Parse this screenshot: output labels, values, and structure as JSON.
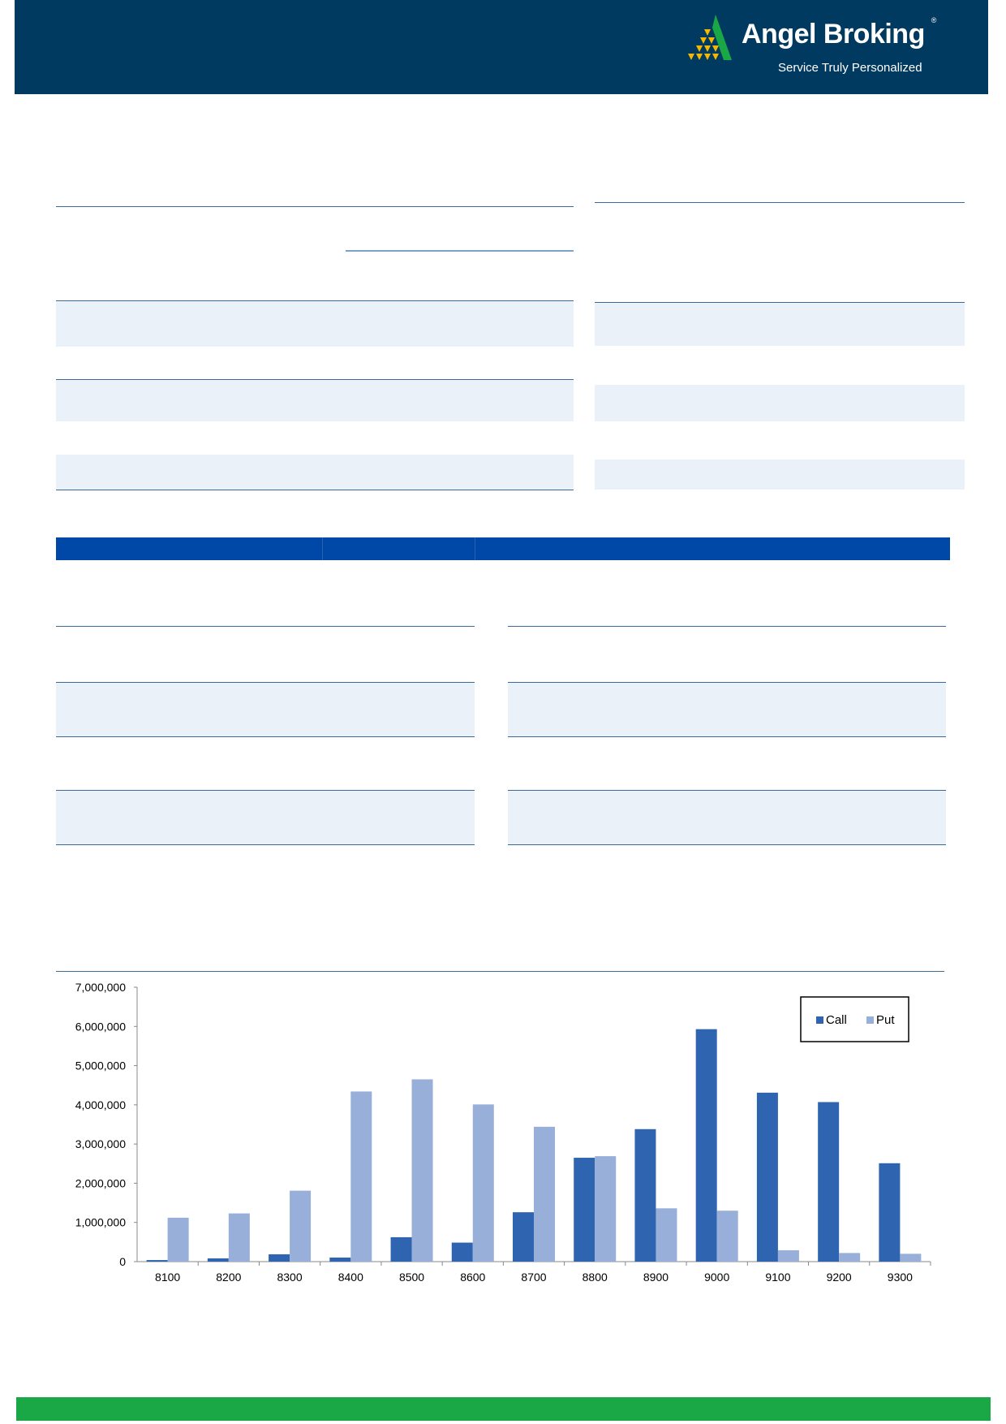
{
  "header": {
    "brand": "Angel Broking",
    "registered": "®",
    "tagline": "Service Truly Personalized",
    "background_color": "#013a60"
  },
  "footer": {
    "color": "#1aa847"
  },
  "chart_data": {
    "type": "bar",
    "categories": [
      "8100",
      "8200",
      "8300",
      "8400",
      "8500",
      "8600",
      "8700",
      "8800",
      "8900",
      "9000",
      "9100",
      "9200",
      "9300"
    ],
    "series": [
      {
        "name": "Call",
        "color": "#2e64b0",
        "values": [
          40000,
          83000,
          187000,
          104000,
          623000,
          485000,
          1260000,
          2650000,
          3380000,
          5930000,
          4310000,
          4070000,
          2510000
        ]
      },
      {
        "name": "Put",
        "color": "#98afd9",
        "values": [
          1120000,
          1230000,
          1810000,
          4340000,
          4650000,
          4010000,
          3440000,
          2690000,
          1360000,
          1300000,
          290000,
          220000,
          200000
        ]
      }
    ],
    "ylim": [
      0,
      7000000
    ],
    "yticks": [
      "0",
      "1,000,000",
      "2,000,000",
      "3,000,000",
      "4,000,000",
      "5,000,000",
      "6,000,000",
      "7,000,000"
    ],
    "legend_position": "top-right",
    "grid": false
  }
}
